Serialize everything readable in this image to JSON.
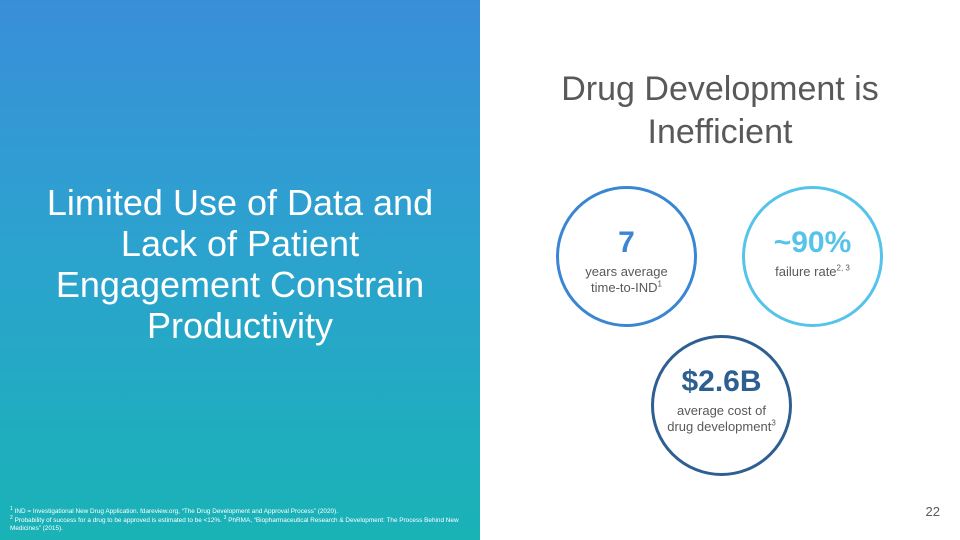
{
  "left_panel": {
    "title": "Limited Use of Data and Lack of Patient Engagement Constrain Productivity"
  },
  "right_panel": {
    "title": "Drug Development is Inefficient"
  },
  "stats": [
    {
      "value": "7",
      "caption_line1": "years average",
      "caption_line2": "time-to-IND",
      "footnote_ref": "1",
      "color": "#3a86d2"
    },
    {
      "value": "~90%",
      "caption": "failure rate",
      "footnote_ref": "2, 3",
      "color": "#55c3ea"
    },
    {
      "value": "$2.6B",
      "caption": "average cost of drug development",
      "footnote_ref": "3",
      "color": "#2e5f91"
    }
  ],
  "footnotes": [
    {
      "mark": "1",
      "text": "IND = Investigational New Drug Application. fdareview.org, “The Drug Development and Approval Process” (2020)."
    },
    {
      "mark": "2",
      "text": "Probability of success for a drug to be approved is estimated to be <12%.",
      "mark2": "3",
      "text2": "PhRMA, “Biopharmaceutical Research & Development: The Process Behind New Medicines” (2015)."
    }
  ],
  "page_number": "22",
  "colors": {
    "gradient_top": "#3a8fd9",
    "gradient_bottom": "#19b3b6",
    "heading_gray": "#595959"
  }
}
